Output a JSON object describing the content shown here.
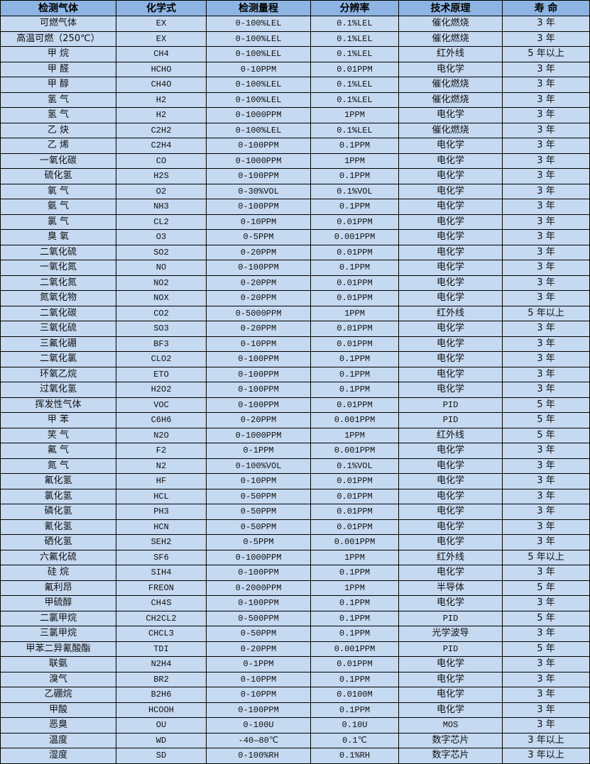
{
  "colors": {
    "header_bg": "#8DB4E2",
    "row_bg": "#C5D9F1",
    "border": "#000000"
  },
  "headers": [
    "检测气体",
    "化学式",
    "检测量程",
    "分辨率",
    "技术原理",
    "寿 命"
  ],
  "rows": [
    [
      "可燃气体",
      "EX",
      "0-100%LEL",
      "0.1%LEL",
      "催化燃烧",
      "3 年"
    ],
    [
      "高温可燃（250℃）",
      "EX",
      "0-100%LEL",
      "0.1%LEL",
      "催化燃烧",
      "3 年"
    ],
    [
      "甲 烷",
      "CH4",
      "0-100%LEL",
      "0.1%LEL",
      "红外线",
      "5 年以上"
    ],
    [
      "甲 醛",
      "HCHO",
      "0-10PPM",
      "0.01PPM",
      "电化学",
      "3 年"
    ],
    [
      "甲 醇",
      "CH4O",
      "0-100%LEL",
      "0.1%LEL",
      "催化燃烧",
      "3 年"
    ],
    [
      "氢 气",
      "H2",
      "0-100%LEL",
      "0.1%LEL",
      "催化燃烧",
      "3 年"
    ],
    [
      "氢 气",
      "H2",
      "0-1000PPM",
      "1PPM",
      "电化学",
      "3 年"
    ],
    [
      "乙 炔",
      "C2H2",
      "0-100%LEL",
      "0.1%LEL",
      "催化燃烧",
      "3 年"
    ],
    [
      "乙 烯",
      "C2H4",
      "0-100PPM",
      "0.1PPM",
      "电化学",
      "3 年"
    ],
    [
      "一氧化碳",
      "CO",
      "0-1000PPM",
      "1PPM",
      "电化学",
      "3 年"
    ],
    [
      "硫化氢",
      "H2S",
      "0-100PPM",
      "0.1PPM",
      "电化学",
      "3 年"
    ],
    [
      "氧 气",
      "O2",
      "0-30%VOL",
      "0.1%VOL",
      "电化学",
      "3 年"
    ],
    [
      "氨 气",
      "NH3",
      "0-100PPM",
      "0.1PPM",
      "电化学",
      "3 年"
    ],
    [
      "氯 气",
      "CL2",
      "0-10PPM",
      "0.01PPM",
      "电化学",
      "3 年"
    ],
    [
      "臭 氧",
      "O3",
      "0-5PPM",
      "0.001PPM",
      "电化学",
      "3 年"
    ],
    [
      "二氧化硫",
      "SO2",
      "0-20PPM",
      "0.01PPM",
      "电化学",
      "3 年"
    ],
    [
      "一氧化氮",
      "NO",
      "0-100PPM",
      "0.1PPM",
      "电化学",
      "3 年"
    ],
    [
      "二氧化氮",
      "NO2",
      "0-20PPM",
      "0.01PPM",
      "电化学",
      "3 年"
    ],
    [
      "氮氧化物",
      "NOX",
      "0-20PPM",
      "0.01PPM",
      "电化学",
      "3 年"
    ],
    [
      "二氧化碳",
      "CO2",
      "0-5000PPM",
      "1PPM",
      "红外线",
      "5 年以上"
    ],
    [
      "三氧化硫",
      "SO3",
      "0-20PPM",
      "0.01PPM",
      "电化学",
      "3 年"
    ],
    [
      "三氟化硼",
      "BF3",
      "0-10PPM",
      "0.01PPM",
      "电化学",
      "3 年"
    ],
    [
      "二氧化氯",
      "CLO2",
      "0-100PPM",
      "0.1PPM",
      "电化学",
      "3 年"
    ],
    [
      "环氧乙烷",
      "ETO",
      "0-100PPM",
      "0.1PPM",
      "电化学",
      "3 年"
    ],
    [
      "过氧化氢",
      "H2O2",
      "0-100PPM",
      "0.1PPM",
      "电化学",
      "3 年"
    ],
    [
      "挥发性气体",
      "VOC",
      "0-100PPM",
      "0.01PPM",
      "PID",
      "5 年"
    ],
    [
      "甲 苯",
      "C6H6",
      "0-20PPM",
      "0.001PPM",
      "PID",
      "5 年"
    ],
    [
      "笑 气",
      "N2O",
      "0-1000PPM",
      "1PPM",
      "红外线",
      "5 年"
    ],
    [
      "氟 气",
      "F2",
      "0-1PPM",
      "0.001PPM",
      "电化学",
      "3 年"
    ],
    [
      "氮 气",
      "N2",
      "0-100%VOL",
      "0.1%VOL",
      "电化学",
      "3 年"
    ],
    [
      "氟化氢",
      "HF",
      "0-10PPM",
      "0.01PPM",
      "电化学",
      "3 年"
    ],
    [
      "氯化氢",
      "HCL",
      "0-50PPM",
      "0.01PPM",
      "电化学",
      "3 年"
    ],
    [
      "磷化氢",
      "PH3",
      "0-50PPM",
      "0.01PPM",
      "电化学",
      "3 年"
    ],
    [
      "氰化氢",
      "HCN",
      "0-50PPM",
      "0.01PPM",
      "电化学",
      "3 年"
    ],
    [
      "硒化氢",
      "SEH2",
      "0-5PPM",
      "0.001PPM",
      "电化学",
      "3 年"
    ],
    [
      "六氟化硫",
      "SF6",
      "0-1000PPM",
      "1PPM",
      "红外线",
      "5 年以上"
    ],
    [
      "硅 烷",
      "SIH4",
      "0-100PPM",
      "0.1PPM",
      "电化学",
      "3 年"
    ],
    [
      "氟利昂",
      "FREON",
      "0-2000PPM",
      "1PPM",
      "半导体",
      "5 年"
    ],
    [
      "甲硫醇",
      "CH4S",
      "0-100PPM",
      "0.1PPM",
      "电化学",
      "3 年"
    ],
    [
      "二氯甲烷",
      "CH2CL2",
      "0-500PPM",
      "0.1PPM",
      "PID",
      "5 年"
    ],
    [
      "三氯甲烷",
      "CHCL3",
      "0-50PPM",
      "0.1PPM",
      "光学波导",
      "3 年"
    ],
    [
      "甲苯二异氰酸酯",
      "TDI",
      "0-20PPM",
      "0.001PPM",
      "PID",
      "5 年"
    ],
    [
      "联氨",
      "N2H4",
      "0-1PPM",
      "0.01PPM",
      "电化学",
      "3 年"
    ],
    [
      "溴气",
      "BR2",
      "0-10PPM",
      "0.1PPM",
      "电化学",
      "3 年"
    ],
    [
      "乙硼烷",
      "B2H6",
      "0-10PPM",
      "0.0100M",
      "电化学",
      "3 年"
    ],
    [
      "甲酸",
      "HCOOH",
      "0-100PPM",
      "0.1PPM",
      "电化学",
      "3 年"
    ],
    [
      "恶臭",
      "OU",
      "0-100U",
      "0.10U",
      "MOS",
      "3 年"
    ],
    [
      "温度",
      "WD",
      "-40—80℃",
      "0.1℃",
      "数字芯片",
      "3 年以上"
    ],
    [
      "湿度",
      "SD",
      "0-100%RH",
      "0.1%RH",
      "数字芯片",
      "3 年以上"
    ]
  ]
}
